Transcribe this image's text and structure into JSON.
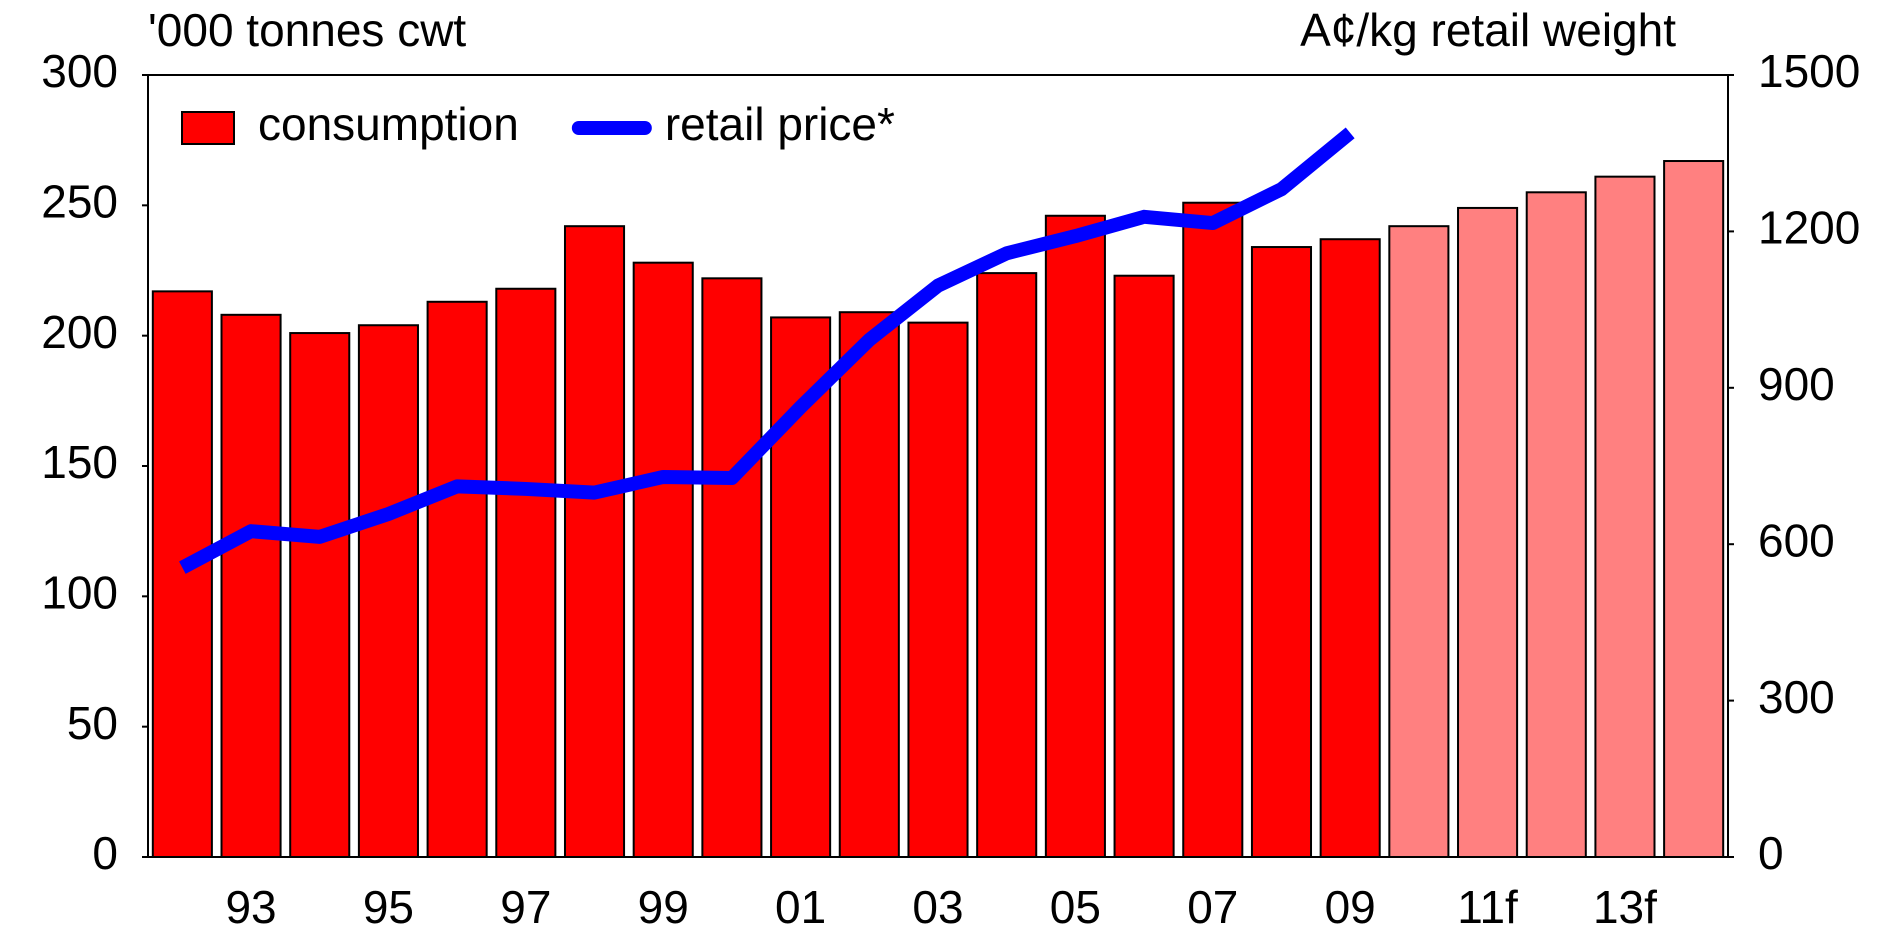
{
  "chart_data": {
    "type": "bar_line",
    "ylabel": "'000 tonnes cwt",
    "y2label": "A¢/kg retail weight",
    "categories": [
      null,
      "93",
      null,
      "95",
      null,
      "97",
      null,
      "99",
      null,
      "01",
      null,
      "03",
      null,
      "05",
      null,
      "07",
      null,
      "09",
      null,
      "11f",
      null,
      "13f",
      null
    ],
    "series": [
      {
        "name": "consumption",
        "type": "bar",
        "color": "#ff0000",
        "colors": [
          "#ff0000",
          "#ff0000",
          "#ff0000",
          "#ff0000",
          "#ff0000",
          "#ff0000",
          "#ff0000",
          "#ff0000",
          "#ff0000",
          "#ff0000",
          "#ff0000",
          "#ff0000",
          "#ff0000",
          "#ff0000",
          "#ff0000",
          "#ff0000",
          "#ff0000",
          "#ff0000",
          "#ff8080",
          "#ff8080",
          "#ff8080",
          "#ff8080",
          "#ff8080"
        ],
        "values": [
          217,
          208,
          201,
          204,
          213,
          218,
          242,
          228,
          222,
          207,
          209,
          205,
          224,
          246,
          223,
          251,
          234,
          237,
          242,
          249,
          255,
          261,
          267
        ]
      },
      {
        "name": "retail price*",
        "type": "line",
        "color": "#0000ff",
        "axis": "y2",
        "values": [
          555,
          625,
          614,
          658,
          711,
          706,
          699,
          729,
          727,
          863,
          992,
          1096,
          1158,
          1191,
          1228,
          1216,
          1281,
          1389,
          null,
          null,
          null,
          null,
          null
        ]
      }
    ],
    "ylim": [
      0,
      300
    ],
    "yticks": [
      0,
      50,
      100,
      150,
      200,
      250,
      300
    ],
    "y2lim": [
      0,
      1500
    ],
    "y2ticks": [
      0,
      300,
      600,
      900,
      1200,
      1500
    ],
    "legend": "top-left"
  }
}
